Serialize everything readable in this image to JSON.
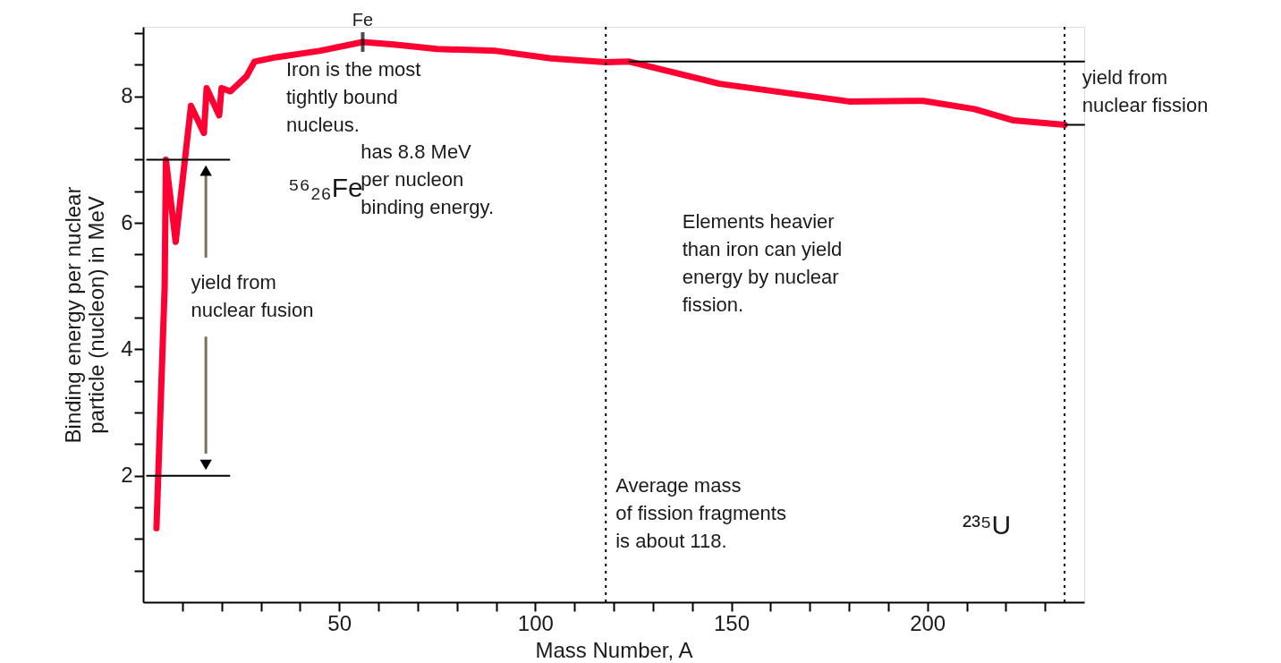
{
  "chart_data": {
    "type": "line",
    "xlabel": "Mass Number, A",
    "ylabel": "Binding energy per nuclear\nparticle (nucleon) in MeV",
    "xlim": [
      0,
      240
    ],
    "ylim": [
      0,
      9.1
    ],
    "xticks": [
      {
        "value": 10,
        "label": null
      },
      {
        "value": 20,
        "label": null
      },
      {
        "value": 30,
        "label": null
      },
      {
        "value": 40,
        "label": null
      },
      50,
      {
        "value": 60,
        "label": null
      },
      {
        "value": 70,
        "label": null
      },
      {
        "value": 80,
        "label": null
      },
      {
        "value": 90,
        "label": null
      },
      100,
      {
        "value": 110,
        "label": null
      },
      {
        "value": 120,
        "label": null
      },
      {
        "value": 130,
        "label": null
      },
      {
        "value": 140,
        "label": null
      },
      150,
      {
        "value": 160,
        "label": null
      },
      {
        "value": 170,
        "label": null
      },
      {
        "value": 180,
        "label": null
      },
      {
        "value": 190,
        "label": null
      },
      200,
      {
        "value": 210,
        "label": null
      },
      {
        "value": 220,
        "label": null
      },
      {
        "value": 230,
        "label": null
      }
    ],
    "yticks": [
      {
        "value": 0.5,
        "label": null
      },
      {
        "value": 1,
        "label": null
      },
      {
        "value": 1.5,
        "label": null
      },
      2,
      {
        "value": 2.5,
        "label": null
      },
      {
        "value": 3,
        "label": null
      },
      {
        "value": 3.5,
        "label": null
      },
      4,
      {
        "value": 4.5,
        "label": null
      },
      {
        "value": 5,
        "label": null
      },
      {
        "value": 5.5,
        "label": null
      },
      6,
      {
        "value": 6.5,
        "label": null
      },
      {
        "value": 7,
        "label": null
      },
      {
        "value": 7.5,
        "label": null
      },
      8,
      {
        "value": 8.5,
        "label": null
      },
      {
        "value": 9,
        "label": null
      }
    ],
    "grid": false,
    "series": [
      {
        "type": "line",
        "color": "#ff0033",
        "x": [
          3.4,
          5.5,
          5.8,
          8.3,
          12.2,
          15.5,
          16.2,
          19.4,
          20,
          22.3,
          26.4,
          28.4,
          34,
          45,
          56,
          64,
          75,
          90,
          104,
          118,
          124,
          147,
          180,
          199,
          212,
          222,
          235
        ],
        "values": [
          1.17,
          5.0,
          7.0,
          5.7,
          7.85,
          7.42,
          8.13,
          7.7,
          8.13,
          8.08,
          8.32,
          8.55,
          8.62,
          8.72,
          8.86,
          8.82,
          8.75,
          8.72,
          8.6,
          8.54,
          8.55,
          8.2,
          7.92,
          7.93,
          7.8,
          7.62,
          7.55
        ]
      },
      {
        "type": "line",
        "color": "#000000",
        "x": [
          1,
          22
        ],
        "values": [
          7,
          7
        ]
      },
      {
        "type": "line",
        "color": "#000000",
        "x": [
          1,
          22
        ],
        "values": [
          2,
          2
        ]
      },
      {
        "type": "line",
        "color": "#000000",
        "x": [
          124,
          240
        ],
        "values": [
          8.55,
          8.55
        ]
      },
      {
        "type": "line",
        "color": "#000000",
        "x": [
          235,
          240
        ],
        "values": [
          7.55,
          7.55
        ]
      }
    ],
    "ref_lines": [
      {
        "axis": "x",
        "value": 118,
        "color": "#000000",
        "line_style": "dotted"
      },
      {
        "axis": "x",
        "value": 235,
        "color": "#000000",
        "line_style": "dotted"
      }
    ],
    "annotations": [
      {
        "text": "Fe",
        "x": 56,
        "y": 8.86
      },
      "Iron is the most\ntightly bound\nnucleus.",
      "⁵⁶₂₆Fe",
      "has 8.8 MeV\nper nucleon\nbinding energy.",
      "yield from\nnuclear fusion",
      "Elements heavier\nthan iron can yield\nenergy by nuclear\nfission.",
      "Average mass\nof fission fragments\nis about 118.",
      "²³⁵U",
      "yield from\nnuclear fission"
    ]
  }
}
